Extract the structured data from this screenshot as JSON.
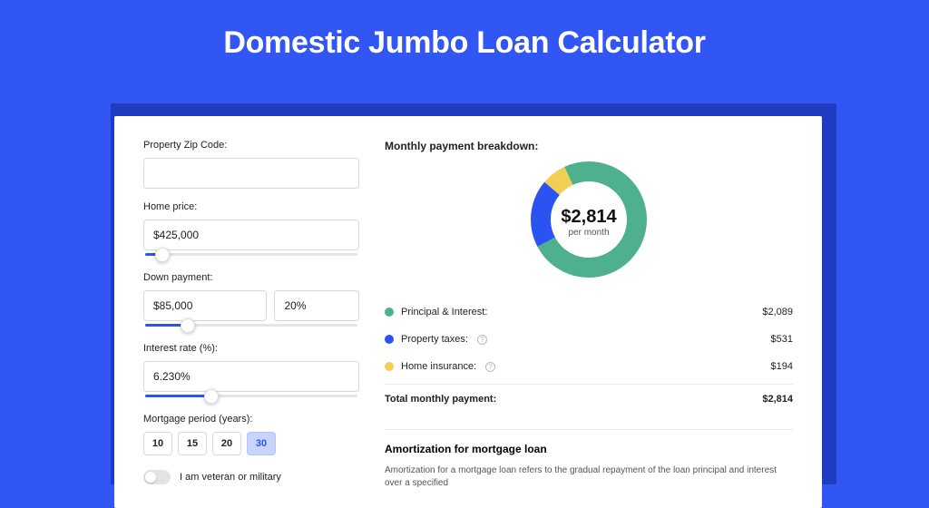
{
  "title": "Domestic Jumbo Loan Calculator",
  "form": {
    "zip_label": "Property Zip Code:",
    "zip_value": "",
    "price_label": "Home price:",
    "price_value": "$425,000",
    "price_slider_pct": 8,
    "down_label": "Down payment:",
    "down_value": "$85,000",
    "down_pct_value": "20%",
    "down_slider_pct": 20,
    "rate_label": "Interest rate (%):",
    "rate_value": "6.230%",
    "rate_slider_pct": 31,
    "period_label": "Mortgage period (years):",
    "periods": [
      "10",
      "15",
      "20",
      "30"
    ],
    "period_selected": "30",
    "veteran_label": "I am veteran or military"
  },
  "breakdown": {
    "title": "Monthly payment breakdown:",
    "center_amount": "$2,814",
    "center_sub": "per month",
    "donut": {
      "size": 128,
      "thickness": 22,
      "slices": [
        {
          "label": "Principal & Interest:",
          "value": "$2,089",
          "pct": 74.2,
          "color": "#4eb08d",
          "info": false
        },
        {
          "label": "Property taxes:",
          "value": "$531",
          "pct": 18.9,
          "color": "#2b53f2",
          "info": true
        },
        {
          "label": "Home insurance:",
          "value": "$194",
          "pct": 6.9,
          "color": "#f1cf56",
          "info": true
        }
      ]
    },
    "total_label": "Total monthly payment:",
    "total_value": "$2,814"
  },
  "amort": {
    "title": "Amortization for mortgage loan",
    "text": "Amortization for a mortgage loan refers to the gradual repayment of the loan principal and interest over a specified"
  },
  "colors": {
    "page_bg": "#3156f3",
    "shadow_bg": "#1f3bbf",
    "accent": "#2b53f2"
  }
}
